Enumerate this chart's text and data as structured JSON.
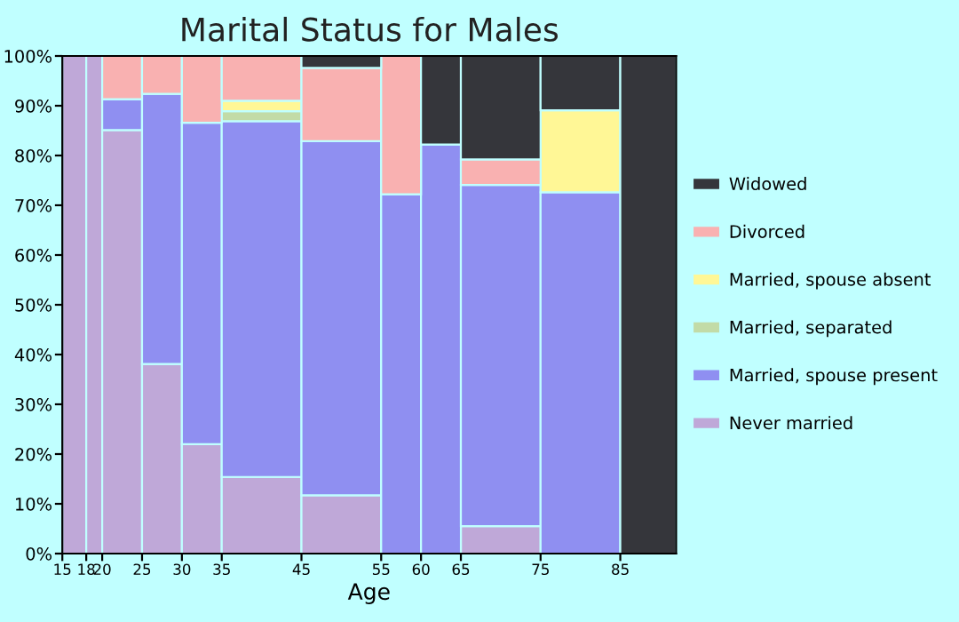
{
  "chart_data": {
    "type": "bar",
    "stacked": true,
    "title": "Marital Status for Males",
    "xlabel": "Age",
    "x": [
      16.5,
      19,
      22.5,
      27.5,
      32.5,
      40,
      50,
      57.5,
      62.5,
      70,
      80,
      88.5
    ],
    "xlim": [
      15,
      92
    ],
    "xticks": [
      15,
      18,
      20,
      25,
      30,
      35,
      45,
      55,
      60,
      65,
      75,
      85
    ],
    "ylim": [
      0,
      100
    ],
    "yticks": [
      {
        "value": 0,
        "label": "0%"
      },
      {
        "value": 10,
        "label": "10%"
      },
      {
        "value": 20,
        "label": "20%"
      },
      {
        "value": 30,
        "label": "30%"
      },
      {
        "value": 40,
        "label": "40%"
      },
      {
        "value": 50,
        "label": "50%"
      },
      {
        "value": 60,
        "label": "60%"
      },
      {
        "value": 70,
        "label": "70%"
      },
      {
        "value": 80,
        "label": "80%"
      },
      {
        "value": 90,
        "label": "90%"
      },
      {
        "value": 100,
        "label": "100%"
      }
    ],
    "grid": false,
    "legend": "right",
    "series": [
      {
        "name": "Never married",
        "color": "#bfa8d8",
        "values": [
          100,
          100,
          85.1,
          38.1,
          22.0,
          15.4,
          11.7,
          0,
          0,
          5.5,
          0,
          0
        ]
      },
      {
        "name": "Married, spouse present",
        "color": "#8f8ff1",
        "values": [
          0,
          0,
          6.2,
          54.3,
          64.6,
          71.5,
          71.2,
          72.2,
          82.2,
          68.6,
          72.6,
          0
        ]
      },
      {
        "name": "Married, separated",
        "color": "#c2dba7",
        "values": [
          0,
          0,
          0,
          0,
          0,
          2.0,
          0,
          0,
          0,
          0,
          0,
          0
        ]
      },
      {
        "name": "Married, spouse absent",
        "color": "#fff796",
        "values": [
          0,
          0,
          0,
          0,
          0,
          2.1,
          0,
          0,
          0,
          0,
          16.5,
          0
        ]
      },
      {
        "name": "Divorced",
        "color": "#f9b1b1",
        "values": [
          0,
          0,
          8.7,
          7.6,
          13.4,
          9.0,
          14.7,
          27.8,
          0,
          5.1,
          0,
          0
        ]
      },
      {
        "name": "Widowed",
        "color": "#35363b",
        "values": [
          0,
          0,
          0,
          0,
          0,
          0,
          2.4,
          0,
          17.8,
          20.8,
          10.9,
          100
        ]
      }
    ]
  }
}
